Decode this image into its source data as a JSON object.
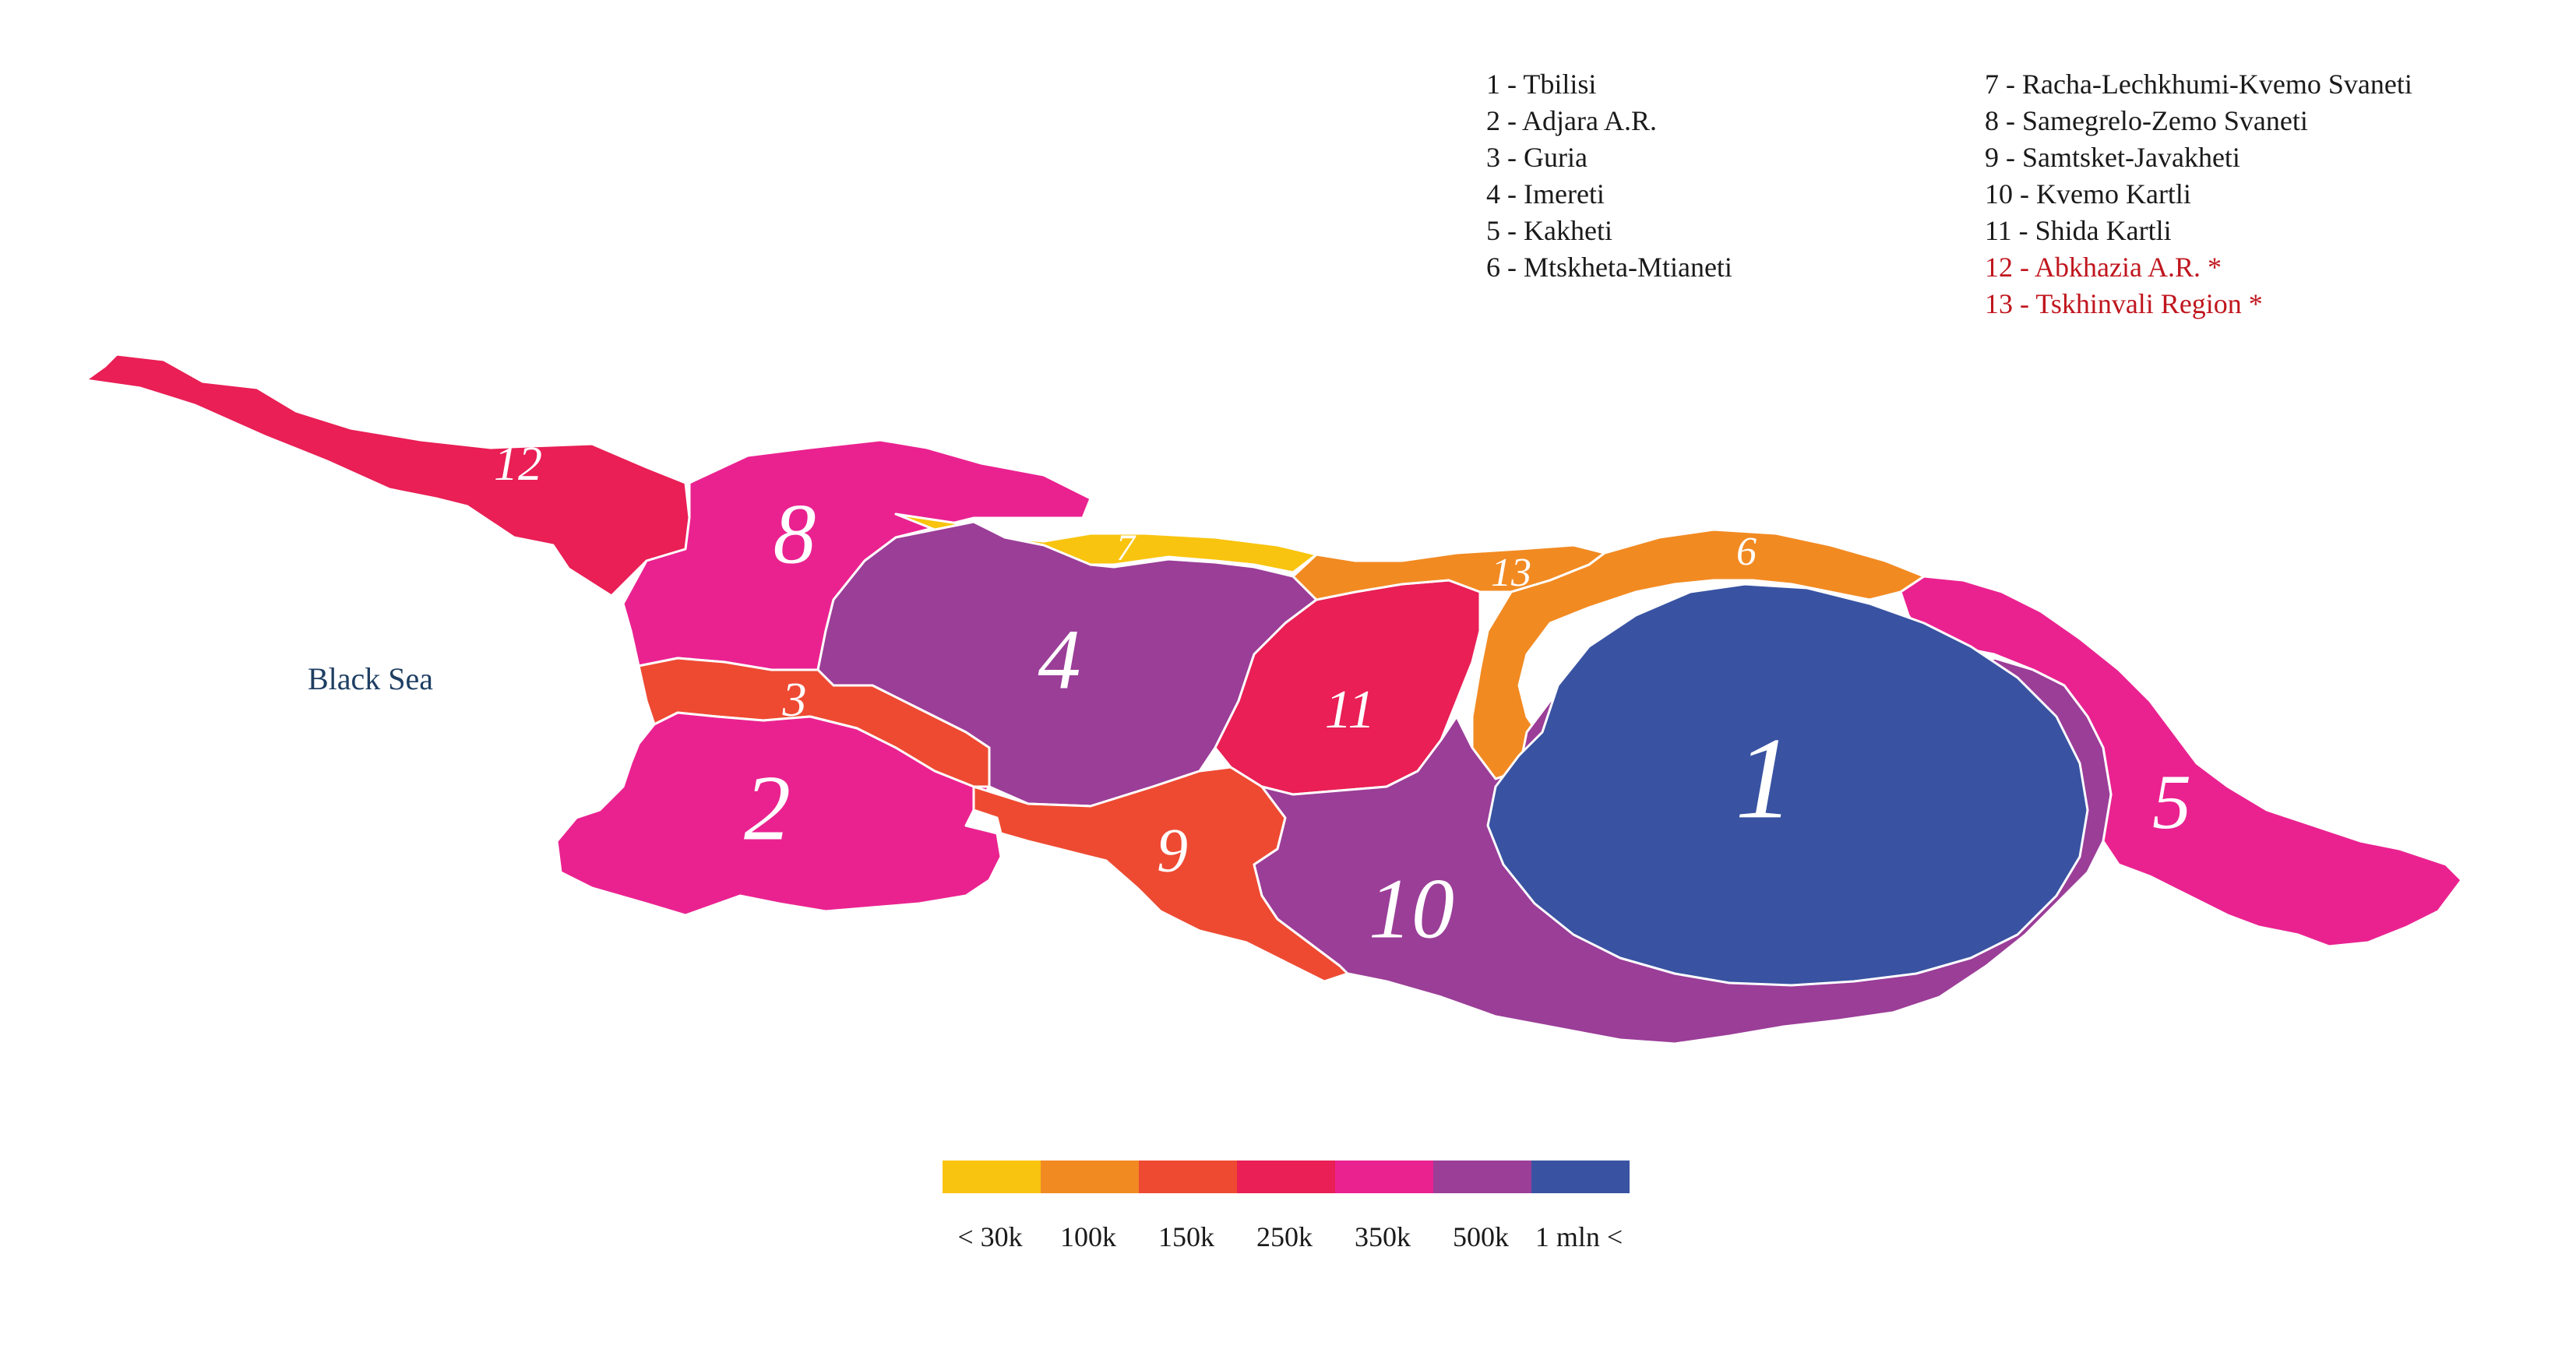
{
  "sea_label": "Black Sea",
  "legend": {
    "column_1": [
      {
        "num": "1",
        "text": "1 - Tbilisi",
        "disputed": false
      },
      {
        "num": "2",
        "text": "2 - Adjara A.R.",
        "disputed": false
      },
      {
        "num": "3",
        "text": "3 - Guria",
        "disputed": false
      },
      {
        "num": "4",
        "text": "4 - Imereti",
        "disputed": false
      },
      {
        "num": "5",
        "text": "5 - Kakheti",
        "disputed": false
      },
      {
        "num": "6",
        "text": "6 - Mtskheta-Mtianeti",
        "disputed": false
      }
    ],
    "column_2": [
      {
        "num": "7",
        "text": "7 - Racha-Lechkhumi-Kvemo Svaneti",
        "disputed": false
      },
      {
        "num": "8",
        "text": "8 - Samegrelo-Zemo Svaneti",
        "disputed": false
      },
      {
        "num": "9",
        "text": "9 - Samtsket-Javakheti",
        "disputed": false
      },
      {
        "num": "10",
        "text": "10 - Kvemo Kartli",
        "disputed": false
      },
      {
        "num": "11",
        "text": "11 - Shida Kartli",
        "disputed": false
      },
      {
        "num": "12",
        "text": "12 - Abkhazia A.R. *",
        "disputed": true
      },
      {
        "num": "13",
        "text": "13 - Tskhinvali Region *",
        "disputed": true
      }
    ],
    "disputed_color": "#c0161e"
  },
  "colors": {
    "lt_30k": "#f9c40f",
    "k100": "#f28a22",
    "k150": "#ee4a32",
    "k250": "#e91f55",
    "k350": "#ea2290",
    "k500": "#9b3e98",
    "mln1": "#3953a2"
  },
  "regions": [
    {
      "num": "1",
      "name": "Tbilisi",
      "color": "#3953a2"
    },
    {
      "num": "2",
      "name": "Adjara A.R.",
      "color": "#ea2290"
    },
    {
      "num": "3",
      "name": "Guria",
      "color": "#ee4a32"
    },
    {
      "num": "4",
      "name": "Imereti",
      "color": "#9b3e98"
    },
    {
      "num": "5",
      "name": "Kakheti",
      "color": "#ea2290"
    },
    {
      "num": "6",
      "name": "Mtskheta-Mtianeti",
      "color": "#f28a22"
    },
    {
      "num": "7",
      "name": "Racha-Lechkhumi-Kvemo Svaneti",
      "color": "#f9c40f"
    },
    {
      "num": "8",
      "name": "Samegrelo-Zemo Svaneti",
      "color": "#ea2290"
    },
    {
      "num": "9",
      "name": "Samtsket-Javakheti",
      "color": "#ee4a32"
    },
    {
      "num": "10",
      "name": "Kvemo Kartli",
      "color": "#9b3e98"
    },
    {
      "num": "11",
      "name": "Shida Kartli",
      "color": "#e91f55"
    },
    {
      "num": "12",
      "name": "Abkhazia A.R.",
      "color": "#e91f55"
    },
    {
      "num": "13",
      "name": "Tskhinvali Region",
      "color": "#f28a22"
    }
  ],
  "scale": {
    "bins": [
      {
        "label": "< 30k",
        "color": "#f9c40f"
      },
      {
        "label": "100k",
        "color": "#f28a22"
      },
      {
        "label": "150k",
        "color": "#ee4a32"
      },
      {
        "label": "250k",
        "color": "#e91f55"
      },
      {
        "label": "350k",
        "color": "#ea2290"
      },
      {
        "label": "500k",
        "color": "#9b3e98"
      },
      {
        "label": "1 mln <",
        "color": "#3953a2"
      }
    ]
  }
}
